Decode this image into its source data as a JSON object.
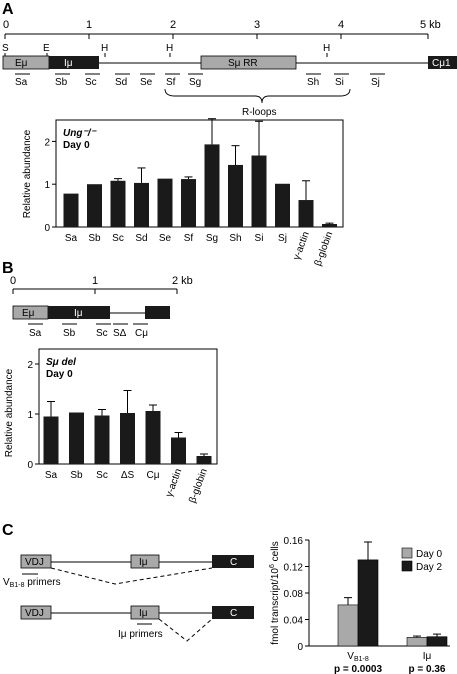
{
  "panelA": {
    "label": "A",
    "scale": {
      "ticks": [
        "0",
        "1",
        "2",
        "3",
        "4"
      ],
      "end_label": "5 kb"
    },
    "sites": [
      "S",
      "E",
      "H",
      "H",
      "H"
    ],
    "blocks": {
      "emu": "Eμ",
      "imu": "Iμ",
      "smu": "Sμ RR",
      "cmu": "Cμ1"
    },
    "probes": [
      "Sa",
      "Sb",
      "Sc",
      "Sd",
      "Se",
      "Sf",
      "Sg",
      "Sh",
      "Si",
      "Sj"
    ],
    "rloops_label": "R-loops",
    "chart_data": {
      "type": "bar",
      "title": "Ung⁻/⁻",
      "subtitle": "Day 0",
      "ylabel": "Relative abundance",
      "ylim": [
        0,
        2.5
      ],
      "yticks": [
        "0",
        "1",
        "2"
      ],
      "categories": [
        "Sa",
        "Sb",
        "Sc",
        "Sd",
        "Se",
        "Sf",
        "Sg",
        "Sh",
        "Si",
        "Sj",
        "γ-actin",
        "β-globin"
      ],
      "values": [
        0.78,
        1.0,
        1.08,
        1.03,
        1.13,
        1.12,
        1.93,
        1.45,
        1.67,
        1.01,
        0.63,
        0.07
      ],
      "errors": [
        0,
        0,
        0.05,
        0.35,
        0,
        0.05,
        0.6,
        0.45,
        0.8,
        0,
        0.45,
        0.02
      ]
    }
  },
  "panelB": {
    "label": "B",
    "scale": {
      "ticks": [
        "0",
        "1"
      ],
      "end_label": "2 kb"
    },
    "blocks": {
      "emu": "Eμ",
      "imu": "Iμ"
    },
    "probes": [
      "Sa",
      "Sb",
      "Sc",
      "SΔ",
      "Cμ"
    ],
    "chart_data": {
      "type": "bar",
      "title": "Sμ del",
      "subtitle": "Day 0",
      "ylabel": "Relative abundance",
      "ylim": [
        0,
        2
      ],
      "yticks": [
        "0",
        "1",
        "2"
      ],
      "categories": [
        "Sa",
        "Sb",
        "Sc",
        "ΔS",
        "Cμ",
        "γ-actin",
        "β-globin"
      ],
      "values": [
        0.95,
        1.03,
        0.97,
        1.02,
        1.06,
        0.53,
        0.16
      ],
      "errors": [
        0.3,
        0,
        0.12,
        0.45,
        0.12,
        0.1,
        0.04
      ]
    }
  },
  "panelC": {
    "label": "C",
    "diagram": {
      "vdj": "VDJ",
      "imu": "Iμ",
      "c": "C",
      "vb_primers_main": "V",
      "vb_primers_sub": "B1-8",
      "vb_primers_suffix": " primers",
      "imu_primers": "Iμ primers"
    },
    "chart_data": {
      "type": "bar",
      "ylabel_main": "fmol transcript/10",
      "ylabel_sup": "6",
      "ylabel_suffix": " cells",
      "ylim": [
        0,
        0.16
      ],
      "yticks": [
        "0",
        "0.04",
        "0.08",
        "0.12",
        "0.16"
      ],
      "categories": [
        {
          "main": "V",
          "sub": "B1-8",
          "p": "p = 0.0003"
        },
        {
          "main": "Iμ",
          "sub": "",
          "p": "p = 0.36"
        }
      ],
      "series": [
        {
          "name": "Day 0",
          "color": "#a9a9a9",
          "values": [
            0.062,
            0.013
          ],
          "errors": [
            0.011,
            0.002
          ]
        },
        {
          "name": "Day 2",
          "color": "#1a1a1a",
          "values": [
            0.13,
            0.014
          ],
          "errors": [
            0.027,
            0.004
          ]
        }
      ]
    }
  }
}
